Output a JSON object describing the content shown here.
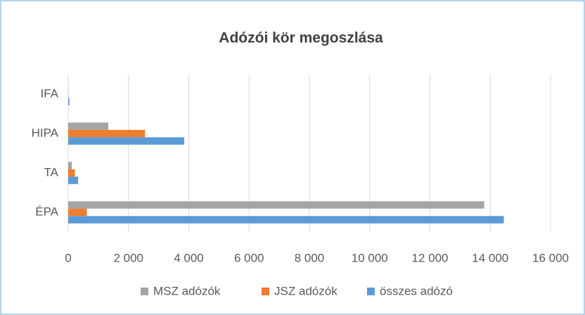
{
  "chart_data": {
    "type": "bar",
    "orientation": "horizontal",
    "title": "Adózói kör megoszlása",
    "categories": [
      "ÉPA",
      "TA",
      "HIPA",
      "IFA"
    ],
    "series": [
      {
        "name": "MSZ adózók",
        "color": "#a5a5a5",
        "values": [
          13800,
          120,
          1330,
          5
        ]
      },
      {
        "name": "JSZ adózók",
        "color": "#ed7d31",
        "values": [
          620,
          220,
          2550,
          5
        ]
      },
      {
        "name": "összes adózó",
        "color": "#5b9bd5",
        "values": [
          14450,
          330,
          3850,
          40
        ]
      }
    ],
    "xlim": [
      0,
      16000
    ],
    "xticks": [
      0,
      {
        "value": 2000,
        "label": "2 000"
      },
      {
        "value": 4000,
        "label": "4 000"
      },
      {
        "value": 6000,
        "label": "6 000"
      },
      {
        "value": 8000,
        "label": "8 000"
      },
      {
        "value": 10000,
        "label": "10 000"
      },
      {
        "value": 12000,
        "label": "12 000"
      },
      {
        "value": 14000,
        "label": "14 000"
      },
      {
        "value": 16000,
        "label": "16 000"
      }
    ],
    "grid": true,
    "legend": "bottom"
  }
}
